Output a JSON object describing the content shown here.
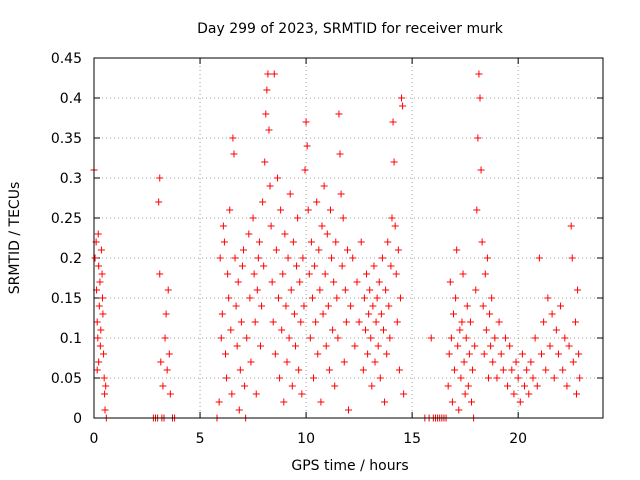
{
  "chart_data": {
    "type": "scatter",
    "title": "Day 299 of 2023, SRMTID for receiver murk",
    "xlabel": "GPS time / hours",
    "ylabel": "SRMTID / TECUs",
    "xlim": [
      0,
      24
    ],
    "ylim": [
      0,
      0.45
    ],
    "xticks": [
      0,
      5,
      10,
      15,
      20
    ],
    "xtick_labels": [
      "0",
      "5",
      "10",
      "15",
      "20"
    ],
    "yticks": [
      0,
      0.05,
      0.1,
      0.15,
      0.2,
      0.25,
      0.3,
      0.35,
      0.4,
      0.45
    ],
    "ytick_labels": [
      "0",
      "0.05",
      "0.1",
      "0.15",
      "0.2",
      "0.25",
      "0.3",
      "0.35",
      "0.4",
      "0.45"
    ],
    "grid": true,
    "marker": "plus",
    "color": "#ff0000",
    "series": [
      {
        "points": [
          [
            0.0,
            0.31
          ],
          [
            0.05,
            0.2
          ],
          [
            0.1,
            0.22
          ],
          [
            0.12,
            0.16
          ],
          [
            0.15,
            0.12
          ],
          [
            0.18,
            0.1
          ],
          [
            0.2,
            0.23
          ],
          [
            0.22,
            0.19
          ],
          [
            0.25,
            0.14
          ],
          [
            0.28,
            0.17
          ],
          [
            0.3,
            0.09
          ],
          [
            0.32,
            0.11
          ],
          [
            0.35,
            0.21
          ],
          [
            0.38,
            0.18
          ],
          [
            0.4,
            0.15
          ],
          [
            0.42,
            0.13
          ],
          [
            0.45,
            0.08
          ],
          [
            0.48,
            0.05
          ],
          [
            0.5,
            0.03
          ],
          [
            0.52,
            0.01
          ],
          [
            0.55,
            0.04
          ],
          [
            0.58,
            0.0
          ],
          [
            0.22,
            0.07
          ],
          [
            0.15,
            0.06
          ],
          [
            2.8,
            0.0
          ],
          [
            2.9,
            0.0
          ],
          [
            3.0,
            0.0
          ],
          [
            3.05,
            0.27
          ],
          [
            3.1,
            0.3
          ],
          [
            3.1,
            0.18
          ],
          [
            3.15,
            0.07
          ],
          [
            3.2,
            0.0
          ],
          [
            3.25,
            0.04
          ],
          [
            3.3,
            0.0
          ],
          [
            3.35,
            0.1
          ],
          [
            3.4,
            0.13
          ],
          [
            3.45,
            0.06
          ],
          [
            3.5,
            0.16
          ],
          [
            3.55,
            0.08
          ],
          [
            3.6,
            0.03
          ],
          [
            3.7,
            0.0
          ],
          [
            3.8,
            0.0
          ],
          [
            5.8,
            0.0
          ],
          [
            5.9,
            0.02
          ],
          [
            5.95,
            0.2
          ],
          [
            6.0,
            0.1
          ],
          [
            6.05,
            0.13
          ],
          [
            6.1,
            0.24
          ],
          [
            6.15,
            0.22
          ],
          [
            6.2,
            0.08
          ],
          [
            6.25,
            0.05
          ],
          [
            6.3,
            0.18
          ],
          [
            6.35,
            0.15
          ],
          [
            6.4,
            0.26
          ],
          [
            6.45,
            0.11
          ],
          [
            6.5,
            0.03
          ],
          [
            6.55,
            0.35
          ],
          [
            6.6,
            0.33
          ],
          [
            6.65,
            0.2
          ],
          [
            6.7,
            0.14
          ],
          [
            6.75,
            0.09
          ],
          [
            6.8,
            0.17
          ],
          [
            6.85,
            0.01
          ],
          [
            6.9,
            0.06
          ],
          [
            6.95,
            0.12
          ],
          [
            7.0,
            0.19
          ],
          [
            7.05,
            0.21
          ],
          [
            7.1,
            0.04
          ],
          [
            7.15,
            0.0
          ],
          [
            7.2,
            0.1
          ],
          [
            7.3,
            0.23
          ],
          [
            7.35,
            0.15
          ],
          [
            7.4,
            0.07
          ],
          [
            7.5,
            0.25
          ],
          [
            7.55,
            0.18
          ],
          [
            7.6,
            0.12
          ],
          [
            7.65,
            0.03
          ],
          [
            7.7,
            0.16
          ],
          [
            7.75,
            0.2
          ],
          [
            7.8,
            0.22
          ],
          [
            7.85,
            0.09
          ],
          [
            7.9,
            0.14
          ],
          [
            7.95,
            0.27
          ],
          [
            8.0,
            0.19
          ],
          [
            8.05,
            0.32
          ],
          [
            8.1,
            0.38
          ],
          [
            8.15,
            0.41
          ],
          [
            8.2,
            0.43
          ],
          [
            8.25,
            0.36
          ],
          [
            8.3,
            0.29
          ],
          [
            8.35,
            0.24
          ],
          [
            8.4,
            0.17
          ],
          [
            8.45,
            0.12
          ],
          [
            8.5,
            0.43
          ],
          [
            8.55,
            0.08
          ],
          [
            8.6,
            0.21
          ],
          [
            8.65,
            0.3
          ],
          [
            8.7,
            0.15
          ],
          [
            8.75,
            0.05
          ],
          [
            8.8,
            0.26
          ],
          [
            8.85,
            0.11
          ],
          [
            8.9,
            0.18
          ],
          [
            8.95,
            0.02
          ],
          [
            9.0,
            0.23
          ],
          [
            9.05,
            0.14
          ],
          [
            9.1,
            0.07
          ],
          [
            9.15,
            0.2
          ],
          [
            9.2,
            0.1
          ],
          [
            9.25,
            0.28
          ],
          [
            9.3,
            0.16
          ],
          [
            9.35,
            0.04
          ],
          [
            9.4,
            0.22
          ],
          [
            9.45,
            0.13
          ],
          [
            9.5,
            0.09
          ],
          [
            9.55,
            0.19
          ],
          [
            9.6,
            0.25
          ],
          [
            9.65,
            0.06
          ],
          [
            9.7,
            0.17
          ],
          [
            9.75,
            0.12
          ],
          [
            9.8,
            0.03
          ],
          [
            9.85,
            0.2
          ],
          [
            9.9,
            0.14
          ],
          [
            9.95,
            0.31
          ],
          [
            10.0,
            0.37
          ],
          [
            10.05,
            0.34
          ],
          [
            10.1,
            0.26
          ],
          [
            10.15,
            0.18
          ],
          [
            10.2,
            0.1
          ],
          [
            10.25,
            0.22
          ],
          [
            10.3,
            0.15
          ],
          [
            10.35,
            0.05
          ],
          [
            10.4,
            0.19
          ],
          [
            10.45,
            0.12
          ],
          [
            10.5,
            0.27
          ],
          [
            10.55,
            0.08
          ],
          [
            10.6,
            0.21
          ],
          [
            10.65,
            0.16
          ],
          [
            10.7,
            0.02
          ],
          [
            10.75,
            0.24
          ],
          [
            10.8,
            0.13
          ],
          [
            10.85,
            0.29
          ],
          [
            10.9,
            0.18
          ],
          [
            10.95,
            0.09
          ],
          [
            11.0,
            0.23
          ],
          [
            11.05,
            0.14
          ],
          [
            11.1,
            0.06
          ],
          [
            11.15,
            0.26
          ],
          [
            11.2,
            0.2
          ],
          [
            11.25,
            0.11
          ],
          [
            11.3,
            0.17
          ],
          [
            11.35,
            0.04
          ],
          [
            11.4,
            0.22
          ],
          [
            11.45,
            0.15
          ],
          [
            11.5,
            0.1
          ],
          [
            11.55,
            0.38
          ],
          [
            11.6,
            0.33
          ],
          [
            11.65,
            0.28
          ],
          [
            11.7,
            0.19
          ],
          [
            11.75,
            0.25
          ],
          [
            11.8,
            0.07
          ],
          [
            11.85,
            0.16
          ],
          [
            11.9,
            0.12
          ],
          [
            11.95,
            0.21
          ],
          [
            12.0,
            0.01
          ],
          [
            12.1,
            0.14
          ],
          [
            12.2,
            0.2
          ],
          [
            12.3,
            0.09
          ],
          [
            12.4,
            0.17
          ],
          [
            12.5,
            0.12
          ],
          [
            12.6,
            0.22
          ],
          [
            12.7,
            0.06
          ],
          [
            12.75,
            0.15
          ],
          [
            12.8,
            0.11
          ],
          [
            12.85,
            0.18
          ],
          [
            12.9,
            0.08
          ],
          [
            12.95,
            0.13
          ],
          [
            13.0,
            0.16
          ],
          [
            13.05,
            0.1
          ],
          [
            13.1,
            0.04
          ],
          [
            13.15,
            0.14
          ],
          [
            13.2,
            0.19
          ],
          [
            13.25,
            0.07
          ],
          [
            13.3,
            0.12
          ],
          [
            13.35,
            0.15
          ],
          [
            13.4,
            0.09
          ],
          [
            13.45,
            0.17
          ],
          [
            13.5,
            0.05
          ],
          [
            13.55,
            0.13
          ],
          [
            13.6,
            0.2
          ],
          [
            13.65,
            0.11
          ],
          [
            13.7,
            0.02
          ],
          [
            13.75,
            0.16
          ],
          [
            13.8,
            0.08
          ],
          [
            13.85,
            0.22
          ],
          [
            13.9,
            0.14
          ],
          [
            13.95,
            0.1
          ],
          [
            14.0,
            0.19
          ],
          [
            14.05,
            0.25
          ],
          [
            14.1,
            0.37
          ],
          [
            14.15,
            0.32
          ],
          [
            14.2,
            0.24
          ],
          [
            14.25,
            0.18
          ],
          [
            14.3,
            0.12
          ],
          [
            14.35,
            0.21
          ],
          [
            14.4,
            0.06
          ],
          [
            14.45,
            0.15
          ],
          [
            14.5,
            0.4
          ],
          [
            14.55,
            0.39
          ],
          [
            14.6,
            0.03
          ],
          [
            15.6,
            0.0
          ],
          [
            15.8,
            0.0
          ],
          [
            15.9,
            0.1
          ],
          [
            16.0,
            0.0
          ],
          [
            16.1,
            0.0
          ],
          [
            16.2,
            0.0
          ],
          [
            16.3,
            0.0
          ],
          [
            16.4,
            0.0
          ],
          [
            16.5,
            0.0
          ],
          [
            16.6,
            0.0
          ],
          [
            16.7,
            0.04
          ],
          [
            16.75,
            0.08
          ],
          [
            16.8,
            0.17
          ],
          [
            16.85,
            0.1
          ],
          [
            16.9,
            0.02
          ],
          [
            16.95,
            0.13
          ],
          [
            17.0,
            0.06
          ],
          [
            17.05,
            0.15
          ],
          [
            17.1,
            0.21
          ],
          [
            17.15,
            0.09
          ],
          [
            17.2,
            0.01
          ],
          [
            17.25,
            0.11
          ],
          [
            17.3,
            0.05
          ],
          [
            17.35,
            0.12
          ],
          [
            17.4,
            0.18
          ],
          [
            17.45,
            0.07
          ],
          [
            17.5,
            0.03
          ],
          [
            17.55,
            0.1
          ],
          [
            17.6,
            0.14
          ],
          [
            17.65,
            0.04
          ],
          [
            17.7,
            0.08
          ],
          [
            17.75,
            0.12
          ],
          [
            17.8,
            0.02
          ],
          [
            17.85,
            0.06
          ],
          [
            17.9,
            0.0
          ],
          [
            17.95,
            0.09
          ],
          [
            18.0,
            0.16
          ],
          [
            18.05,
            0.26
          ],
          [
            18.1,
            0.35
          ],
          [
            18.15,
            0.43
          ],
          [
            18.2,
            0.4
          ],
          [
            18.25,
            0.31
          ],
          [
            18.3,
            0.22
          ],
          [
            18.35,
            0.14
          ],
          [
            18.4,
            0.08
          ],
          [
            18.45,
            0.18
          ],
          [
            18.5,
            0.11
          ],
          [
            18.55,
            0.2
          ],
          [
            18.6,
            0.05
          ],
          [
            18.65,
            0.13
          ],
          [
            18.7,
            0.09
          ],
          [
            18.75,
            0.15
          ],
          [
            18.8,
            0.07
          ],
          [
            18.9,
            0.1
          ],
          [
            19.0,
            0.05
          ],
          [
            19.1,
            0.12
          ],
          [
            19.2,
            0.08
          ],
          [
            19.3,
            0.06
          ],
          [
            19.4,
            0.1
          ],
          [
            19.5,
            0.04
          ],
          [
            19.6,
            0.09
          ],
          [
            19.7,
            0.06
          ],
          [
            19.8,
            0.03
          ],
          [
            19.9,
            0.07
          ],
          [
            20.0,
            0.05
          ],
          [
            20.1,
            0.02
          ],
          [
            20.2,
            0.08
          ],
          [
            20.3,
            0.04
          ],
          [
            20.4,
            0.06
          ],
          [
            20.5,
            0.03
          ],
          [
            20.6,
            0.07
          ],
          [
            20.7,
            0.05
          ],
          [
            20.8,
            0.1
          ],
          [
            20.9,
            0.04
          ],
          [
            21.0,
            0.2
          ],
          [
            21.1,
            0.08
          ],
          [
            21.2,
            0.12
          ],
          [
            21.3,
            0.06
          ],
          [
            21.4,
            0.15
          ],
          [
            21.5,
            0.09
          ],
          [
            21.6,
            0.13
          ],
          [
            21.7,
            0.05
          ],
          [
            21.8,
            0.11
          ],
          [
            21.9,
            0.08
          ],
          [
            22.0,
            0.14
          ],
          [
            22.1,
            0.06
          ],
          [
            22.2,
            0.1
          ],
          [
            22.3,
            0.04
          ],
          [
            22.4,
            0.09
          ],
          [
            22.5,
            0.24
          ],
          [
            22.55,
            0.2
          ],
          [
            22.6,
            0.07
          ],
          [
            22.7,
            0.12
          ],
          [
            22.75,
            0.03
          ],
          [
            22.8,
            0.16
          ],
          [
            22.85,
            0.08
          ],
          [
            22.9,
            0.05
          ]
        ]
      }
    ]
  }
}
